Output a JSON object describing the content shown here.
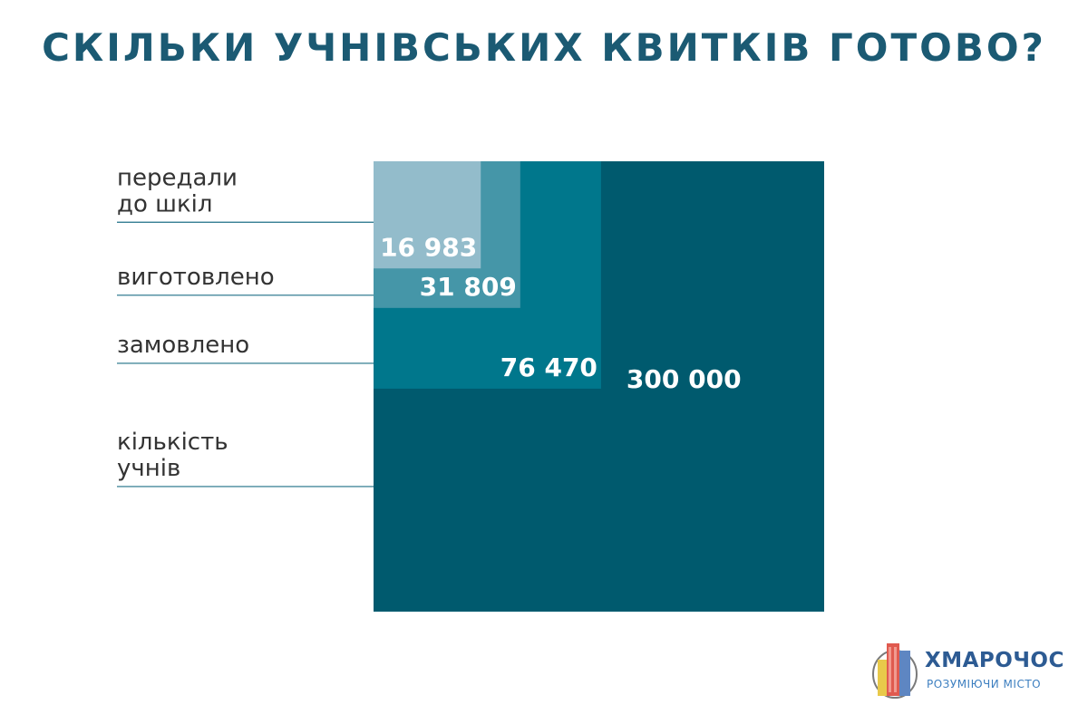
{
  "title": "СКІЛЬКИ УЧНІВСЬКИХ КВИТКІВ ГОТОВО?",
  "chart_data": {
    "type": "nested-area",
    "series": [
      {
        "category": "кількість учнів",
        "label_lines": [
          "кількість",
          "учнів"
        ],
        "value": 300000,
        "display": "300 000",
        "color": "#005a6e"
      },
      {
        "category": "замовлено",
        "label_lines": [
          "замовлено"
        ],
        "value": 76470,
        "display": "76 470",
        "color": "#00778c"
      },
      {
        "category": "виготовлено",
        "label_lines": [
          "виготовлено"
        ],
        "value": 31809,
        "display": "31 809",
        "color": "#4596a8"
      },
      {
        "category": "передали до шкіл",
        "label_lines": [
          "передали",
          "до шкіл"
        ],
        "value": 16983,
        "display": "16 983",
        "color": "#93bccb"
      }
    ],
    "line_color": "#1e6f86"
  },
  "logo": {
    "name": "ХМАРОЧОС",
    "tagline": "РОЗУМІЮЧИ МІСТО"
  }
}
